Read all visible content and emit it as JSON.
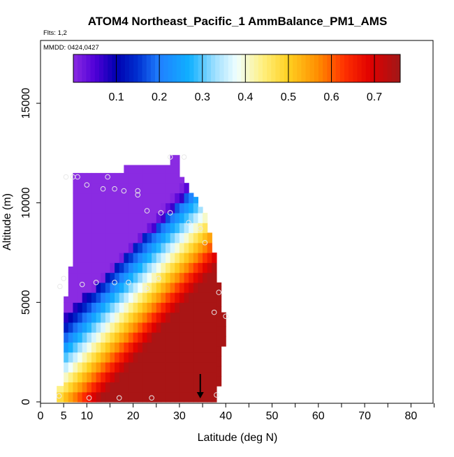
{
  "chart_data": {
    "type": "heatmap",
    "title": "ATOM4 Northeast_Pacific_1 AmmBalance_PM1_AMS",
    "subtitle_flights": "Flts: 1,2",
    "subtitle_dates": "MMDD: 0424,0427",
    "xlabel": "Latitude (deg N)",
    "ylabel": "Altitude (m)",
    "xlim": [
      0,
      85
    ],
    "ylim": [
      0,
      18500
    ],
    "x_ticks": [
      0,
      5,
      10,
      20,
      30,
      40,
      50,
      60,
      70,
      80
    ],
    "x_tick_labels": [
      "0",
      "5",
      "10",
      "20",
      "30",
      "40",
      "50",
      "60",
      "70",
      "80"
    ],
    "x_minor_ticks": [
      15,
      25,
      35,
      45,
      55,
      65,
      75,
      85
    ],
    "y_ticks": [
      0,
      5000,
      10000,
      15000
    ],
    "y_tick_labels": [
      "0",
      "5000",
      "10000",
      "15000"
    ],
    "colorbar": {
      "range": [
        0,
        0.76
      ],
      "tick_values": [
        0.1,
        0.2,
        0.3,
        0.4,
        0.5,
        0.6,
        0.7
      ],
      "tick_labels": [
        "0.1",
        "0.2",
        "0.3",
        "0.4",
        "0.5",
        "0.6",
        "0.7"
      ],
      "stops": [
        {
          "v": 0.0,
          "c": "#8a2be2"
        },
        {
          "v": 0.05,
          "c": "#5000d8"
        },
        {
          "v": 0.1,
          "c": "#0000b0"
        },
        {
          "v": 0.15,
          "c": "#0030d0"
        },
        {
          "v": 0.2,
          "c": "#2080ff"
        },
        {
          "v": 0.27,
          "c": "#10b0ff"
        },
        {
          "v": 0.33,
          "c": "#a0e0ff"
        },
        {
          "v": 0.38,
          "c": "#f0ffff"
        },
        {
          "v": 0.44,
          "c": "#fff080"
        },
        {
          "v": 0.5,
          "c": "#ffd020"
        },
        {
          "v": 0.57,
          "c": "#ff8c00"
        },
        {
          "v": 0.63,
          "c": "#ff3000"
        },
        {
          "v": 0.69,
          "c": "#e00000"
        },
        {
          "v": 0.76,
          "c": "#a01818"
        }
      ]
    },
    "field": {
      "x_edges": [
        3.5,
        5,
        6,
        7,
        8,
        9,
        10,
        11,
        12,
        13,
        14,
        15,
        16,
        17,
        18,
        19,
        20,
        21,
        22,
        23,
        24,
        25,
        26,
        27,
        28,
        29,
        30,
        31,
        32,
        33,
        34,
        35,
        36,
        37,
        38,
        39,
        40
      ],
      "upper_alt_by_col": [
        800,
        5300,
        6800,
        11500,
        11500,
        11500,
        11500,
        11500,
        11500,
        11500,
        11500,
        11500,
        11500,
        11500,
        11900,
        11900,
        11900,
        11900,
        11900,
        11900,
        11900,
        11900,
        11900,
        11900,
        12400,
        12400,
        11300,
        11000,
        10500,
        10300,
        9800,
        9500,
        8500,
        7500,
        6000,
        4500
      ],
      "lower_alt_by_col": [
        0,
        0,
        0,
        0,
        0,
        0,
        0,
        0,
        0,
        0,
        0,
        0,
        0,
        0,
        0,
        0,
        0,
        0,
        0,
        0,
        0,
        0,
        0,
        0,
        0,
        0,
        0,
        0,
        0,
        0,
        0,
        0,
        0,
        0,
        800,
        2800
      ],
      "layer_step_m": 500,
      "gradient_note": "value rises from ~0.1 aloft to ~0.7 near surface, front tilted toward higher latitude"
    },
    "sample_points": [
      {
        "lat": 4,
        "alt": 300
      },
      {
        "lat": 10.5,
        "alt": 200
      },
      {
        "lat": 17,
        "alt": 200
      },
      {
        "lat": 24,
        "alt": 200
      },
      {
        "lat": 38,
        "alt": 350
      },
      {
        "lat": 4.2,
        "alt": 5800
      },
      {
        "lat": 5,
        "alt": 6200
      },
      {
        "lat": 9,
        "alt": 5900
      },
      {
        "lat": 12,
        "alt": 6000
      },
      {
        "lat": 16,
        "alt": 6000
      },
      {
        "lat": 19,
        "alt": 6000
      },
      {
        "lat": 23,
        "alt": 5700
      },
      {
        "lat": 25.5,
        "alt": 6200
      },
      {
        "lat": 37.5,
        "alt": 4500
      },
      {
        "lat": 38.5,
        "alt": 5500
      },
      {
        "lat": 40,
        "alt": 4300
      },
      {
        "lat": 5.5,
        "alt": 11300
      },
      {
        "lat": 7,
        "alt": 11300
      },
      {
        "lat": 8,
        "alt": 11300
      },
      {
        "lat": 10,
        "alt": 10900
      },
      {
        "lat": 13.5,
        "alt": 10700
      },
      {
        "lat": 14.5,
        "alt": 11300
      },
      {
        "lat": 16,
        "alt": 10700
      },
      {
        "lat": 18,
        "alt": 10600
      },
      {
        "lat": 21,
        "alt": 10600
      },
      {
        "lat": 21,
        "alt": 10400
      },
      {
        "lat": 23,
        "alt": 9600
      },
      {
        "lat": 26,
        "alt": 9500
      },
      {
        "lat": 28,
        "alt": 9500
      },
      {
        "lat": 32,
        "alt": 9000
      },
      {
        "lat": 34.5,
        "alt": 8700
      },
      {
        "lat": 35.5,
        "alt": 8000
      },
      {
        "lat": 28,
        "alt": 12300
      },
      {
        "lat": 31,
        "alt": 12300
      }
    ],
    "flight_marker": {
      "lat": 34.5,
      "alt": 700,
      "label": ""
    },
    "legend": "colorbar-top"
  }
}
